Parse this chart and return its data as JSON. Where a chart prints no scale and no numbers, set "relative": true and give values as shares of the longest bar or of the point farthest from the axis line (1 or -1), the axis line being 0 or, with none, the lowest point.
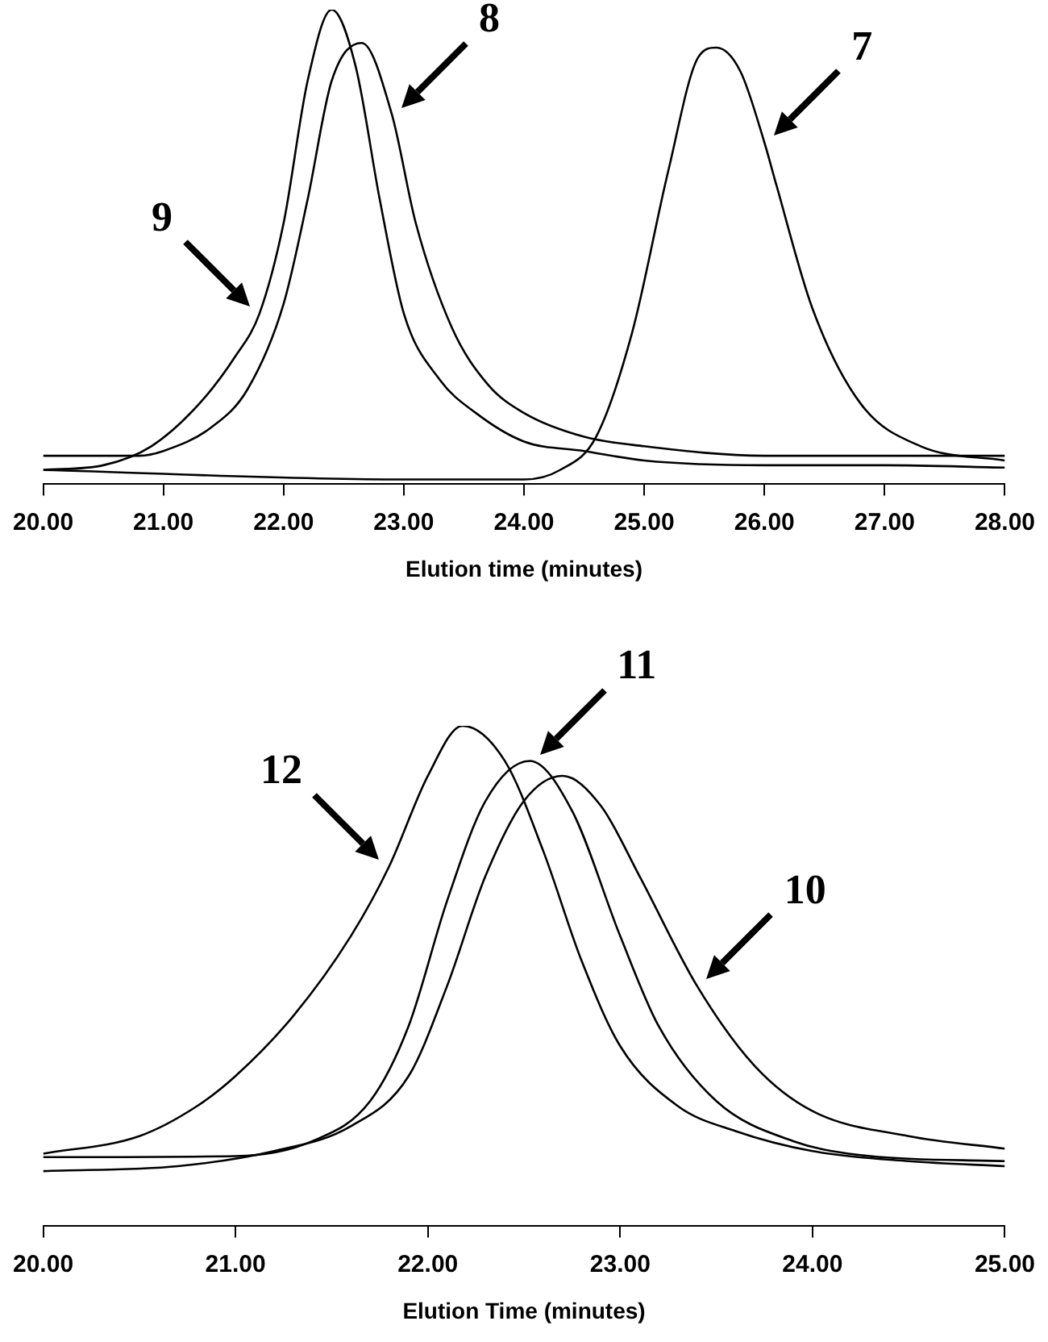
{
  "chart_data": [
    {
      "type": "line",
      "relative": true,
      "xlabel": "Elution time (minutes)",
      "xlim": [
        20,
        28
      ],
      "xticks": [
        {
          "value": 20,
          "label": "20.00"
        },
        {
          "value": 21,
          "label": "21.00"
        },
        {
          "value": 22,
          "label": "22.00"
        },
        {
          "value": 23,
          "label": "23.00"
        },
        {
          "value": 24,
          "label": "24.00"
        },
        {
          "value": 25,
          "label": "25.00"
        },
        {
          "value": 26,
          "label": "26.00"
        },
        {
          "value": 27,
          "label": "27.00"
        },
        {
          "value": 28,
          "label": "28.00"
        }
      ],
      "grid": false,
      "legend": false,
      "marker": "none",
      "line_style": "solid",
      "series": [
        {
          "color": "#000000",
          "x": [
            20,
            20.5,
            20.9,
            21.3,
            21.6,
            21.8,
            22.0,
            22.2,
            22.4,
            22.6,
            22.8,
            23.0,
            23.3,
            23.6,
            24.0,
            24.5,
            25,
            26,
            27,
            28
          ],
          "values": [
            0.03,
            0.04,
            0.08,
            0.17,
            0.27,
            0.36,
            0.55,
            0.85,
            1.0,
            0.88,
            0.6,
            0.36,
            0.22,
            0.15,
            0.09,
            0.07,
            0.05,
            0.04,
            0.04,
            0.035
          ]
        },
        {
          "color": "#000000",
          "x": [
            20,
            20.8,
            21.0,
            21.4,
            21.7,
            22.0,
            22.2,
            22.4,
            22.65,
            22.9,
            23.1,
            23.4,
            23.7,
            24.0,
            24.5,
            25,
            26,
            27,
            28
          ],
          "values": [
            0.06,
            0.06,
            0.07,
            0.12,
            0.2,
            0.38,
            0.6,
            0.85,
            0.93,
            0.78,
            0.55,
            0.33,
            0.21,
            0.15,
            0.1,
            0.08,
            0.06,
            0.06,
            0.06
          ]
        },
        {
          "color": "#000000",
          "x": [
            20,
            23,
            24,
            24.3,
            24.6,
            24.9,
            25.2,
            25.45,
            25.6,
            25.8,
            26.0,
            26.1,
            26.4,
            26.8,
            27.3,
            28
          ],
          "values": [
            0.03,
            0.01,
            0.01,
            0.03,
            0.1,
            0.32,
            0.66,
            0.9,
            0.92,
            0.87,
            0.72,
            0.63,
            0.37,
            0.17,
            0.08,
            0.05
          ]
        }
      ],
      "annotations": [
        {
          "text": "9",
          "x": 21.8,
          "y": 0.36
        },
        {
          "text": "8",
          "x": 22.9,
          "y": 0.78
        },
        {
          "text": "7",
          "x": 26.0,
          "y": 0.72
        }
      ]
    },
    {
      "type": "line",
      "relative": true,
      "xlabel": "Elution Time (minutes)",
      "xlim": [
        20,
        25
      ],
      "xticks": [
        {
          "value": 20,
          "label": "20.00"
        },
        {
          "value": 21,
          "label": "21.00"
        },
        {
          "value": 22,
          "label": "22.00"
        },
        {
          "value": 23,
          "label": "23.00"
        },
        {
          "value": 24,
          "label": "24.00"
        },
        {
          "value": 25,
          "label": "25.00"
        }
      ],
      "grid": false,
      "legend": false,
      "marker": "none",
      "line_style": "solid",
      "series": [
        {
          "color": "#000000",
          "x": [
            20,
            20.5,
            20.8,
            21.0,
            21.3,
            21.6,
            21.8,
            22.0,
            22.18,
            22.4,
            22.6,
            22.8,
            23.0,
            23.3,
            23.6,
            24.0,
            24.5,
            25
          ],
          "values": [
            0.145,
            0.18,
            0.24,
            0.3,
            0.42,
            0.58,
            0.72,
            0.9,
            1.0,
            0.93,
            0.75,
            0.53,
            0.36,
            0.24,
            0.19,
            0.15,
            0.13,
            0.12
          ]
        },
        {
          "color": "#000000",
          "x": [
            20,
            21.0,
            21.4,
            21.7,
            21.9,
            22.1,
            22.3,
            22.53,
            22.75,
            23.0,
            23.2,
            23.5,
            23.9,
            24.3,
            25
          ],
          "values": [
            0.138,
            0.14,
            0.17,
            0.25,
            0.4,
            0.65,
            0.85,
            0.93,
            0.83,
            0.58,
            0.4,
            0.25,
            0.17,
            0.14,
            0.13
          ]
        },
        {
          "color": "#000000",
          "x": [
            20,
            20.7,
            21.2,
            21.6,
            21.9,
            22.1,
            22.3,
            22.5,
            22.7,
            22.9,
            23.1,
            23.4,
            23.7,
            24.0,
            24.5,
            25
          ],
          "values": [
            0.11,
            0.12,
            0.15,
            0.2,
            0.3,
            0.48,
            0.7,
            0.85,
            0.9,
            0.84,
            0.7,
            0.48,
            0.32,
            0.23,
            0.18,
            0.155
          ]
        }
      ],
      "annotations": [
        {
          "text": "12",
          "x": 21.8,
          "y": 0.72
        },
        {
          "text": "11",
          "x": 22.53,
          "y": 0.93
        },
        {
          "text": "10",
          "x": 23.4,
          "y": 0.48
        }
      ]
    }
  ]
}
